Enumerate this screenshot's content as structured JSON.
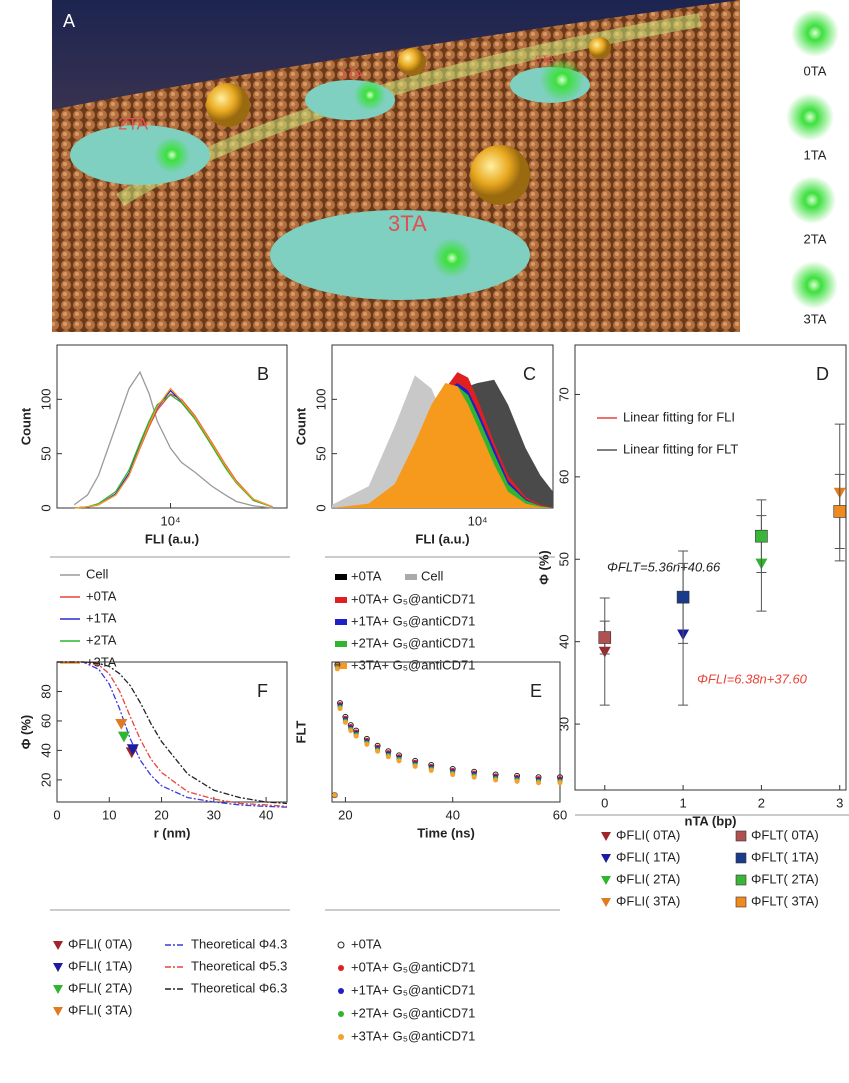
{
  "illustration": {
    "panel_label": "A",
    "labels": [
      "2TA",
      "1TA",
      "0TA",
      "3TA"
    ],
    "side_labels": [
      "0TA",
      "1TA",
      "2TA",
      "3TA"
    ]
  },
  "chart_data": [
    {
      "type": "line",
      "panel_label": "B",
      "x_label": "FLI (a.u.)",
      "y_label": "Count",
      "xscale": "log",
      "xlim": [
        1500,
        70000
      ],
      "xticks": [
        {
          "value": 10000,
          "label": "10⁴"
        }
      ],
      "ylim": [
        0,
        150
      ],
      "yticks": [
        0,
        50,
        100
      ],
      "x": [
        2000,
        2500,
        3000,
        4000,
        5000,
        6000,
        7000,
        8000,
        10000,
        12000,
        15000,
        20000,
        25000,
        30000,
        40000,
        55000
      ],
      "series": [
        {
          "name": "Cell",
          "color": "#9a9a9a",
          "values": [
            3,
            12,
            30,
            75,
            110,
            125,
            105,
            80,
            55,
            42,
            33,
            20,
            12,
            6,
            2,
            0
          ]
        },
        {
          "name": "+0TA",
          "color": "#e8443a",
          "values": [
            0,
            1,
            3,
            12,
            30,
            55,
            75,
            90,
            105,
            100,
            85,
            60,
            40,
            25,
            8,
            1
          ]
        },
        {
          "name": "+1TA",
          "color": "#2a2ad0",
          "values": [
            0,
            1,
            3,
            13,
            32,
            58,
            78,
            92,
            108,
            98,
            83,
            58,
            38,
            24,
            7,
            1
          ]
        },
        {
          "name": "+2TA",
          "color": "#2fb52f",
          "values": [
            0,
            1,
            4,
            15,
            35,
            60,
            80,
            95,
            104,
            97,
            82,
            57,
            37,
            23,
            7,
            1
          ]
        },
        {
          "name": "+3TA",
          "color": "#f59a1c",
          "values": [
            0,
            1,
            3,
            12,
            30,
            56,
            77,
            93,
            110,
            99,
            84,
            59,
            39,
            24,
            8,
            1
          ]
        }
      ]
    },
    {
      "type": "area",
      "panel_label": "C",
      "x_label": "FLI (a.u.)",
      "y_label": "Count",
      "xscale": "log",
      "xlim": [
        2000,
        23000
      ],
      "xticks": [
        {
          "value": 10000,
          "label": "10⁴"
        }
      ],
      "ylim": [
        0,
        150
      ],
      "yticks": [
        0,
        50,
        100
      ],
      "x": [
        2000,
        3000,
        4000,
        5000,
        6000,
        7000,
        8000,
        9000,
        10000,
        12000,
        14000,
        17000,
        20000,
        23000
      ],
      "series": [
        {
          "name": "+0TA",
          "color": "#4a4a4a",
          "values": [
            0,
            2,
            10,
            35,
            65,
            90,
            108,
            112,
            115,
            118,
            95,
            55,
            30,
            15
          ]
        },
        {
          "name": "Cell",
          "color": "#c8c8c8",
          "values": [
            3,
            20,
            75,
            122,
            110,
            80,
            45,
            22,
            10,
            3,
            1,
            0,
            0,
            0
          ]
        },
        {
          "name": "+0TA+ G₅@antiCD71",
          "color": "#e02020",
          "values": [
            0,
            3,
            18,
            50,
            85,
            110,
            125,
            120,
            100,
            60,
            30,
            10,
            3,
            0
          ]
        },
        {
          "name": "+1TA+ G₅@antiCD71",
          "color": "#2020c8",
          "values": [
            0,
            3,
            18,
            50,
            85,
            108,
            115,
            108,
            90,
            55,
            25,
            8,
            2,
            0
          ]
        },
        {
          "name": "+2TA+ G₅@antiCD71",
          "color": "#2fb52f",
          "values": [
            0,
            3,
            19,
            52,
            88,
            110,
            112,
            104,
            85,
            50,
            22,
            7,
            2,
            0
          ]
        },
        {
          "name": "+3TA+ G₅@antiCD71",
          "color": "#f59a1c",
          "values": [
            0,
            4,
            22,
            60,
            95,
            115,
            112,
            95,
            75,
            40,
            15,
            4,
            1,
            0
          ]
        }
      ]
    },
    {
      "type": "scatter",
      "panel_label": "D",
      "x_label": "nTA (bp)",
      "y_label": "Φ (%)",
      "xlim": [
        -0.38,
        3.08
      ],
      "xticks": [
        0,
        1,
        2,
        3
      ],
      "ylim": [
        22,
        76
      ],
      "yticks": [
        30,
        40,
        50,
        60,
        70
      ],
      "x": [
        0,
        1,
        2,
        3
      ],
      "annotations": [
        "ΦFLT=5.36n+40.66",
        "ΦFLI=6.38n+37.60"
      ],
      "series": [
        {
          "name": "Linear fitting for FLI",
          "color": "#e8443a",
          "kind": "line",
          "values": [
            37.6,
            null,
            null,
            56.74
          ]
        },
        {
          "name": "Linear fitting for FLT",
          "color": "#555555",
          "kind": "line",
          "values": [
            40.66,
            null,
            null,
            56.74
          ]
        },
        {
          "name": "ΦFLI( 0TA)",
          "color": "#a0242a",
          "marker": "triangle-down",
          "values": [
            38.8,
            null,
            null,
            null
          ],
          "errors": [
            6.5,
            null,
            null,
            null
          ]
        },
        {
          "name": "ΦFLI( 1TA)",
          "color": "#1c1ca0",
          "marker": "triangle-down",
          "values": [
            null,
            40.9,
            null,
            null
          ],
          "errors": [
            null,
            8.6,
            null,
            null
          ]
        },
        {
          "name": "ΦFLI( 2TA)",
          "color": "#2fb52f",
          "marker": "triangle-down",
          "values": [
            null,
            null,
            49.5,
            null
          ],
          "errors": [
            null,
            null,
            5.8,
            null
          ]
        },
        {
          "name": "ΦFLI( 3TA)",
          "color": "#e07b20",
          "marker": "triangle-down",
          "values": [
            null,
            null,
            null,
            58.1
          ],
          "errors": [
            null,
            null,
            null,
            8.3
          ]
        },
        {
          "name": "ΦFLT( 0TA)",
          "color": "#b05050",
          "marker": "square",
          "values": [
            40.5,
            null,
            null,
            null
          ],
          "errors": [
            2,
            null,
            null,
            null
          ]
        },
        {
          "name": "ΦFLT( 1TA)",
          "color": "#1a3a8a",
          "marker": "square",
          "values": [
            null,
            45.4,
            null,
            null
          ],
          "errors": [
            null,
            5.6,
            null,
            null
          ]
        },
        {
          "name": "ΦFLT( 2TA)",
          "color": "#3ab53a",
          "marker": "square",
          "values": [
            null,
            null,
            52.8,
            null
          ],
          "errors": [
            null,
            null,
            4.4,
            null
          ]
        },
        {
          "name": "ΦFLT( 3TA)",
          "color": "#f08a20",
          "marker": "square",
          "values": [
            null,
            null,
            null,
            55.8
          ],
          "errors": [
            null,
            null,
            null,
            4.5
          ]
        }
      ]
    },
    {
      "type": "scatter",
      "panel_label": "E",
      "x_label": "Time (ns)",
      "y_label": "FLT",
      "xlim": [
        17.5,
        60
      ],
      "xticks": [
        20,
        40,
        60
      ],
      "ylim": [
        0,
        1.02
      ],
      "yticks": [],
      "x": [
        18,
        18.5,
        19,
        20,
        21,
        22,
        24,
        26,
        28,
        30,
        33,
        36,
        40,
        44,
        48,
        52,
        56,
        60
      ],
      "series": [
        {
          "name": "+0TA",
          "color": "#222222",
          "marker": "circle-open",
          "values": [
            0.05,
            1.0,
            0.72,
            0.62,
            0.56,
            0.52,
            0.46,
            0.41,
            0.37,
            0.34,
            0.3,
            0.27,
            0.24,
            0.22,
            0.2,
            0.19,
            0.18,
            0.18
          ]
        },
        {
          "name": "+0TA+ G₅@antiCD71",
          "color": "#e02020",
          "marker": "circle",
          "values": [
            0.05,
            0.99,
            0.71,
            0.61,
            0.55,
            0.51,
            0.45,
            0.4,
            0.36,
            0.33,
            0.29,
            0.26,
            0.23,
            0.21,
            0.19,
            0.18,
            0.17,
            0.17
          ]
        },
        {
          "name": "+1TA+ G₅@antiCD71",
          "color": "#2020c8",
          "marker": "circle",
          "values": [
            0.05,
            0.98,
            0.7,
            0.6,
            0.54,
            0.5,
            0.44,
            0.39,
            0.35,
            0.32,
            0.28,
            0.25,
            0.22,
            0.2,
            0.18,
            0.17,
            0.16,
            0.16
          ]
        },
        {
          "name": "+2TA+ G₅@antiCD71",
          "color": "#2fb52f",
          "marker": "circle",
          "values": [
            0.05,
            0.98,
            0.69,
            0.59,
            0.53,
            0.49,
            0.43,
            0.38,
            0.34,
            0.31,
            0.27,
            0.24,
            0.21,
            0.19,
            0.17,
            0.16,
            0.15,
            0.15
          ]
        },
        {
          "name": "+3TA+ G₅@antiCD71",
          "color": "#f5a030",
          "marker": "circle",
          "values": [
            0.05,
            0.97,
            0.68,
            0.58,
            0.52,
            0.48,
            0.42,
            0.37,
            0.33,
            0.3,
            0.26,
            0.23,
            0.2,
            0.18,
            0.16,
            0.15,
            0.14,
            0.14
          ]
        }
      ]
    },
    {
      "type": "line",
      "panel_label": "F",
      "x_label": "r (nm)",
      "y_label": "Φ (%)",
      "xlim": [
        0,
        44
      ],
      "xticks": [
        0,
        10,
        20,
        30,
        40
      ],
      "ylim": [
        5,
        100
      ],
      "yticks": [
        20,
        40,
        60,
        80
      ],
      "series": [
        {
          "name": "Theoretical Φ4.3",
          "color": "#3a3ae0",
          "dash": "dashdot",
          "x": [
            0,
            5,
            8,
            10,
            12,
            14,
            16,
            18,
            20,
            25,
            30,
            35,
            40,
            44
          ],
          "values": [
            100,
            100,
            95,
            85,
            68,
            48,
            33,
            23,
            16,
            8,
            5,
            3,
            2,
            1.5
          ]
        },
        {
          "name": "Theoretical Φ5.3",
          "color": "#e8443a",
          "dash": "dashdot",
          "x": [
            0,
            5,
            8,
            10,
            12,
            14,
            16,
            18,
            20,
            25,
            30,
            35,
            40,
            44
          ],
          "values": [
            100,
            100,
            98,
            92,
            80,
            63,
            47,
            34,
            25,
            12,
            7,
            4,
            3,
            2
          ]
        },
        {
          "name": "Theoretical Φ6.3",
          "color": "#222222",
          "dash": "dashdot",
          "x": [
            0,
            5,
            8,
            10,
            12,
            14,
            16,
            18,
            20,
            25,
            30,
            35,
            40,
            44
          ],
          "values": [
            100,
            100,
            99,
            97,
            92,
            84,
            72,
            58,
            46,
            24,
            13,
            8,
            5,
            4
          ]
        },
        {
          "name": "ΦFLI( 0TA)",
          "color": "#a0242a",
          "marker": "triangle-down",
          "x": [
            14.3
          ],
          "values": [
            38.8
          ]
        },
        {
          "name": "ΦFLI( 1TA)",
          "color": "#1c1ca0",
          "marker": "triangle-down",
          "x": [
            14.5
          ],
          "values": [
            40.9
          ]
        },
        {
          "name": "ΦFLI( 2TA)",
          "color": "#2fb52f",
          "marker": "triangle-down",
          "x": [
            12.8
          ],
          "values": [
            49.5
          ]
        },
        {
          "name": "ΦFLI( 3TA)",
          "color": "#e07b20",
          "marker": "triangle-down",
          "x": [
            12.3
          ],
          "values": [
            58.1
          ]
        }
      ]
    }
  ]
}
